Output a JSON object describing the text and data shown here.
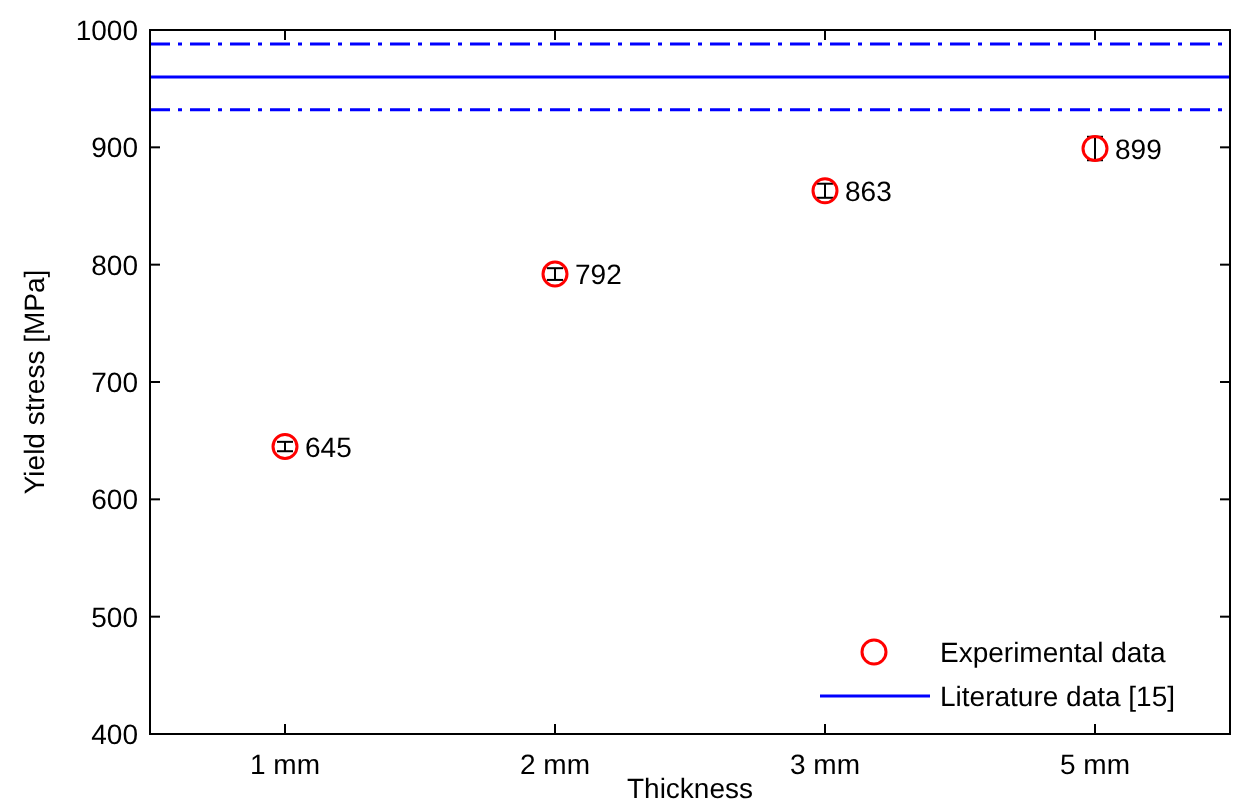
{
  "chart_data": {
    "type": "scatter",
    "xlabel": "Thickness",
    "ylabel": "Yield stress [MPa]",
    "categories": [
      "1 mm",
      "2 mm",
      "3 mm",
      "5 mm"
    ],
    "series": [
      {
        "name": "Experimental data",
        "color": "#ff0000",
        "values": [
          645,
          792,
          863,
          899
        ],
        "errors": [
          4,
          5,
          6,
          10
        ]
      }
    ],
    "ref_lines": [
      {
        "axis": "y",
        "value": 960,
        "label": "Literature data [15]",
        "color": "#0000ff",
        "line_style": "solid"
      },
      {
        "axis": "y",
        "value": 988,
        "color": "#0000ff",
        "line_style": "dashed"
      },
      {
        "axis": "y",
        "value": 932,
        "color": "#0000ff",
        "line_style": "dashed"
      }
    ],
    "ylim": [
      400,
      1000
    ],
    "yticks": [
      400,
      500,
      600,
      700,
      800,
      900,
      1000
    ],
    "marker": "circle",
    "data_labels": true,
    "legend": "bottom right",
    "grid": false
  }
}
